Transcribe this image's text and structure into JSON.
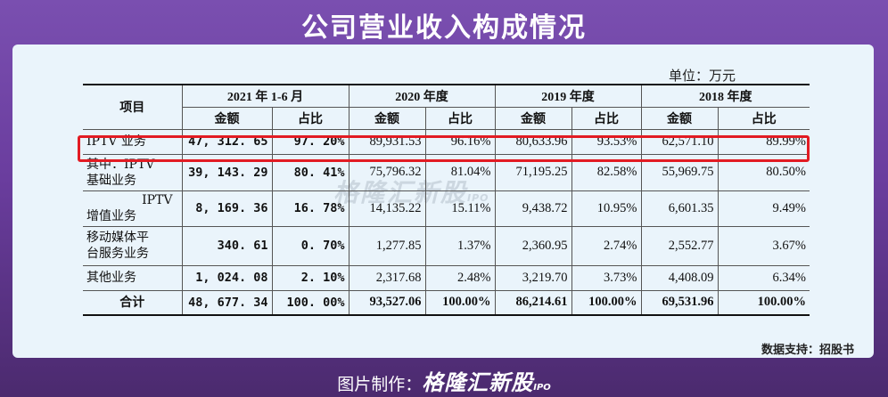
{
  "title": "公司营业收入构成情况",
  "unit": "单位：万元",
  "headers": {
    "item": "项目",
    "periods": [
      "2021 年 1-6 月",
      "2020 年度",
      "2019 年度",
      "2018 年度"
    ],
    "amount": "金额",
    "ratio": "占比"
  },
  "rows": [
    {
      "item": "IPTV 业务",
      "v": [
        "47, 312. 65",
        "97. 20%",
        "89,931.53",
        "96.16%",
        "80,633.96",
        "93.53%",
        "62,571.10",
        "89.99%"
      ]
    },
    {
      "item1": "其中：IPTV",
      "item2": "基础业务",
      "v": [
        "39, 143. 29",
        "80. 41%",
        "75,796.32",
        "81.04%",
        "71,195.25",
        "82.58%",
        "55,969.75",
        "80.50%"
      ]
    },
    {
      "item1": "IPTV",
      "item2": "增值业务",
      "v": [
        "8, 169. 36",
        "16. 78%",
        "14,135.22",
        "15.11%",
        "9,438.72",
        "10.95%",
        "6,601.35",
        "9.49%"
      ]
    },
    {
      "item1": "移动媒体平",
      "item2": "台服务业务",
      "v": [
        "340. 61",
        "0. 70%",
        "1,277.85",
        "1.37%",
        "2,360.95",
        "2.74%",
        "2,552.77",
        "3.67%"
      ]
    },
    {
      "item": "其他业务",
      "v": [
        "1, 024. 08",
        "2. 10%",
        "2,317.68",
        "2.48%",
        "3,219.70",
        "3.73%",
        "4,408.09",
        "6.34%"
      ]
    },
    {
      "item": "合计",
      "v": [
        "48, 677. 34",
        "100. 00%",
        "93,527.06",
        "100.00%",
        "86,214.61",
        "100.00%",
        "69,531.96",
        "100.00%"
      ]
    }
  ],
  "watermark": {
    "text": "格隆汇新股",
    "tag": "IPO"
  },
  "source": "数据支持：招股书",
  "footer": {
    "label": "图片制作：",
    "brand": "格隆汇新股",
    "tag": "IPO"
  },
  "colors": {
    "background": "#6a3d9e",
    "card": "#eaf4fb",
    "highlight": "#e21b23"
  }
}
